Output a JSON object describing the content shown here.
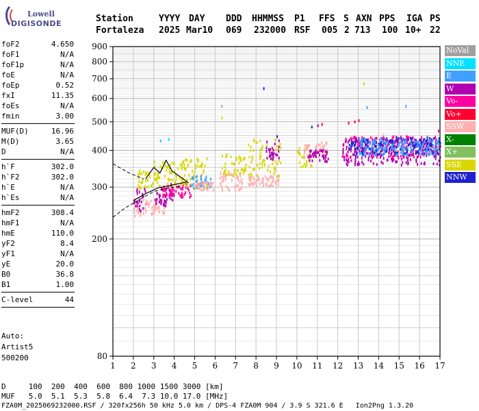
{
  "logo": {
    "line1": "Lowell",
    "line2": "DIGISONDE"
  },
  "header": {
    "labels": [
      "Station",
      "YYYY",
      "DAY",
      "DDD",
      "HHMMSS",
      "P1",
      "FFS",
      "S",
      "AXN",
      "PPS",
      "IGA",
      "PS"
    ],
    "values": [
      "Fortaleza",
      "2025",
      "Mar10",
      "069",
      "232000",
      "RSF",
      "005",
      "2",
      "713",
      "100",
      "10+",
      "22"
    ]
  },
  "params": {
    "group1": [
      {
        "k": "foF2",
        "v": "4.650"
      },
      {
        "k": "foF1",
        "v": "N/A"
      },
      {
        "k": "foF1p",
        "v": "N/A"
      },
      {
        "k": "foE",
        "v": "N/A"
      },
      {
        "k": "foEp",
        "v": "0.52"
      },
      {
        "k": "fxI",
        "v": "11.35"
      },
      {
        "k": "foEs",
        "v": "N/A"
      },
      {
        "k": "fmin",
        "v": "3.00"
      }
    ],
    "group2": [
      {
        "k": "MUF(D)",
        "v": "16.96"
      },
      {
        "k": "M(D)",
        "v": "3.65"
      },
      {
        "k": "D",
        "v": "N/A"
      }
    ],
    "group3": [
      {
        "k": "h`F",
        "v": "302.0"
      },
      {
        "k": "h`F2",
        "v": "302.0"
      },
      {
        "k": "h`E",
        "v": "N/A"
      },
      {
        "k": "h`Es",
        "v": "N/A"
      }
    ],
    "group4": [
      {
        "k": "hmF2",
        "v": "308.4"
      },
      {
        "k": "hmF1",
        "v": "N/A"
      },
      {
        "k": "hmE",
        "v": "110.0"
      },
      {
        "k": "yF2",
        "v": "8.4"
      },
      {
        "k": "yF1",
        "v": "N/A"
      },
      {
        "k": "yE",
        "v": "20.0"
      },
      {
        "k": "B0",
        "v": "36.8"
      },
      {
        "k": "B1",
        "v": "1.00"
      }
    ],
    "group5": [
      {
        "k": "C-level",
        "v": "44"
      }
    ]
  },
  "auto": {
    "line1": "Auto:",
    "line2": "Artist5",
    "line3": "500200"
  },
  "legend": [
    {
      "label": "NoVal",
      "color": "#a0a0a0"
    },
    {
      "label": "NNE",
      "color": "#00e0ff"
    },
    {
      "label": "E",
      "color": "#40a0ff"
    },
    {
      "label": "W",
      "color": "#b000b0"
    },
    {
      "label": "Vo-",
      "color": "#ff00a0"
    },
    {
      "label": "Vo+",
      "color": "#ff0030"
    },
    {
      "label": "SSW",
      "color": "#ffb0b0"
    },
    {
      "label": "X-",
      "color": "#008000"
    },
    {
      "label": "X+",
      "color": "#80c060"
    },
    {
      "label": "SSE",
      "color": "#d8d800"
    },
    {
      "label": "NNW",
      "color": "#2020d0"
    }
  ],
  "footer": {
    "d_row": "D     100  200  400  600  800 1000 1500 3000 [km]",
    "muf_row": "MUF   5.0  5.1  5.3  5.8  6.4  7.3 10.0 17.0 [MHz]",
    "file_row": "FZA0M_2025069232000.RSF / 320fx256h 50 kHz 5.0 km / DPS-4 FZA0M 904 / 3.9 S 321.6 E   Ion2Png 1.3.20"
  },
  "chart_data": {
    "type": "scatter",
    "title": "",
    "xlabel": "",
    "ylabel": "",
    "xlim": [
      1,
      17
    ],
    "ylim": [
      80,
      900
    ],
    "x_ticks": [
      1,
      2,
      3,
      4,
      5,
      6,
      7,
      8,
      9,
      10,
      11,
      12,
      13,
      14,
      15,
      16,
      17
    ],
    "y_ticks": [
      80,
      200,
      300,
      400,
      500,
      600,
      700,
      800,
      900
    ],
    "y_scale": "log",
    "grid": true,
    "legend_placement": "right",
    "point_clusters": [
      {
        "x": [
          1.95,
          2.5
        ],
        "y": [
          240,
          275
        ],
        "color": "#ffb0b0"
      },
      {
        "x": [
          2.0,
          2.6
        ],
        "y": [
          250,
          300
        ],
        "color": "#b000b0"
      },
      {
        "x": [
          2.2,
          3.0
        ],
        "y": [
          300,
          345
        ],
        "color": "#d8d800"
      },
      {
        "x": [
          2.5,
          3.6
        ],
        "y": [
          245,
          275
        ],
        "color": "#ffb0b0"
      },
      {
        "x": [
          3.0,
          4.0
        ],
        "y": [
          260,
          300
        ],
        "color": "#b000b0"
      },
      {
        "x": [
          3.0,
          4.7
        ],
        "y": [
          305,
          370
        ],
        "color": "#d8d800"
      },
      {
        "x": [
          3.4,
          4.8
        ],
        "y": [
          280,
          310
        ],
        "color": "#ff00a0"
      },
      {
        "x": [
          4.2,
          5.6
        ],
        "y": [
          300,
          380
        ],
        "color": "#d8d800"
      },
      {
        "x": [
          4.8,
          5.8
        ],
        "y": [
          300,
          330
        ],
        "color": "#40a0ff"
      },
      {
        "x": [
          5.0,
          5.9
        ],
        "y": [
          296,
          315
        ],
        "color": "#ffb0b0"
      },
      {
        "x": [
          6.2,
          7.3
        ],
        "y": [
          295,
          340
        ],
        "color": "#ffb0b0"
      },
      {
        "x": [
          6.3,
          7.5
        ],
        "y": [
          330,
          395
        ],
        "color": "#d8d800"
      },
      {
        "x": [
          7.6,
          9.1
        ],
        "y": [
          305,
          330
        ],
        "color": "#ffb0b0"
      },
      {
        "x": [
          7.6,
          9.2
        ],
        "y": [
          330,
          440
        ],
        "color": "#d8d800"
      },
      {
        "x": [
          8.4,
          9.1
        ],
        "y": [
          370,
          440
        ],
        "color": "#b000b0"
      },
      {
        "x": [
          10.0,
          10.7
        ],
        "y": [
          355,
          415
        ],
        "color": "#d8d800"
      },
      {
        "x": [
          10.3,
          11.5
        ],
        "y": [
          380,
          430
        ],
        "color": "#ffb0b0"
      },
      {
        "x": [
          10.5,
          11.5
        ],
        "y": [
          370,
          405
        ],
        "color": "#b000b0"
      },
      {
        "x": [
          12.2,
          17.0
        ],
        "y": [
          360,
          440
        ],
        "color": "#b000b0"
      },
      {
        "x": [
          12.3,
          17.0
        ],
        "y": [
          380,
          450
        ],
        "color": "#ff00a0"
      },
      {
        "x": [
          12.5,
          17.0
        ],
        "y": [
          390,
          445
        ],
        "color": "#2020d0"
      },
      {
        "x": [
          13.0,
          17.0
        ],
        "y": [
          385,
          445
        ],
        "color": "#40a0ff"
      }
    ],
    "isolated_points": [
      {
        "x": 6.3,
        "y": 570,
        "color": "#a0a0a0"
      },
      {
        "x": 6.3,
        "y": 520,
        "color": "#d8d800"
      },
      {
        "x": 8.35,
        "y": 655,
        "color": "#2020d0"
      },
      {
        "x": 13.25,
        "y": 680,
        "color": "#d8d800"
      },
      {
        "x": 13.0,
        "y": 510,
        "color": "#ff00a0"
      },
      {
        "x": 13.4,
        "y": 565,
        "color": "#40a0ff"
      },
      {
        "x": 15.3,
        "y": 570,
        "color": "#40a0ff"
      },
      {
        "x": 11.2,
        "y": 495,
        "color": "#ff0030"
      },
      {
        "x": 11.0,
        "y": 490,
        "color": "#b000b0"
      },
      {
        "x": 12.8,
        "y": 505,
        "color": "#ff0030"
      },
      {
        "x": 12.5,
        "y": 500,
        "color": "#ff0030"
      },
      {
        "x": 10.7,
        "y": 485,
        "color": "#2020d0"
      },
      {
        "x": 14.2,
        "y": 455,
        "color": "#ffb0b0"
      },
      {
        "x": 16.9,
        "y": 470,
        "color": "#ff00a0"
      },
      {
        "x": 3.3,
        "y": 435,
        "color": "#40a0ff"
      },
      {
        "x": 3.7,
        "y": 440,
        "color": "#00e0ff"
      },
      {
        "x": 9.0,
        "y": 450,
        "color": "#2020d0"
      }
    ],
    "dashed_profile": [
      [
        1.0,
        237
      ],
      [
        1.6,
        255
      ],
      [
        2.3,
        272
      ],
      [
        3.0,
        290
      ],
      [
        3.7,
        298
      ],
      [
        4.3,
        302
      ]
    ],
    "dashed_profile_upper": [
      [
        1.0,
        360
      ],
      [
        1.8,
        335
      ],
      [
        2.5,
        320
      ]
    ],
    "trace_lower": [
      [
        2.0,
        270
      ],
      [
        2.6,
        285
      ],
      [
        3.2,
        298
      ],
      [
        3.9,
        305
      ],
      [
        4.6,
        312
      ]
    ],
    "trace_upper": [
      [
        2.6,
        320
      ],
      [
        3.0,
        350
      ],
      [
        3.3,
        335
      ],
      [
        3.6,
        370
      ],
      [
        3.9,
        340
      ],
      [
        4.3,
        325
      ],
      [
        4.7,
        310
      ]
    ]
  }
}
